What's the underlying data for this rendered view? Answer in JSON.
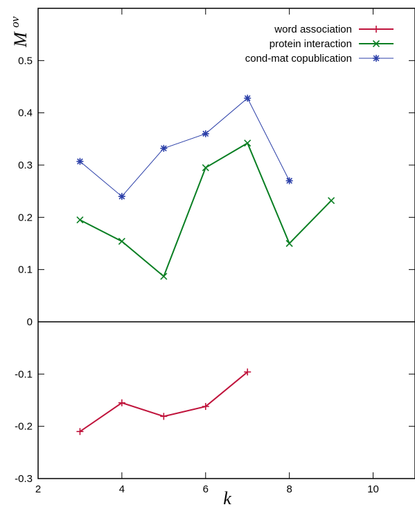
{
  "chart_data": {
    "type": "line",
    "title": "",
    "xlabel": "k",
    "ylabel_base": "M",
    "ylabel_sup": "ov",
    "xlim": [
      2,
      11
    ],
    "ylim": [
      -0.3,
      0.6
    ],
    "xticks": [
      2,
      4,
      6,
      8,
      10
    ],
    "yticks": [
      -0.3,
      -0.2,
      -0.1,
      0,
      0.1,
      0.2,
      0.3,
      0.4,
      0.5
    ],
    "ytick_labels": [
      "-0.3",
      "-0.2",
      "-0.1",
      "0",
      "0.1",
      "0.2",
      "0.3",
      "0.4",
      "0.5"
    ],
    "xtick_labels": [
      "2",
      "4",
      "6",
      "8",
      "10"
    ],
    "zero_line": true,
    "grid": false,
    "legend_position": "top-right",
    "series": [
      {
        "name": "word association",
        "color": "#c0143c",
        "marker": "plus",
        "line_width": 2,
        "x": [
          3,
          4,
          5,
          6,
          7
        ],
        "y": [
          -0.21,
          -0.155,
          -0.181,
          -0.162,
          -0.096
        ]
      },
      {
        "name": "protein interaction",
        "color": "#0a7f23",
        "marker": "cross",
        "line_width": 2,
        "x": [
          3,
          4,
          5,
          6,
          7,
          8,
          9
        ],
        "y": [
          0.195,
          0.154,
          0.087,
          0.295,
          0.342,
          0.15,
          0.232
        ]
      },
      {
        "name": "cond-mat copublication",
        "color": "#2b3fa8",
        "marker": "star",
        "line_width": 1,
        "x": [
          3,
          4,
          5,
          6,
          7,
          8
        ],
        "y": [
          0.307,
          0.24,
          0.332,
          0.36,
          0.428,
          0.27
        ]
      }
    ]
  }
}
